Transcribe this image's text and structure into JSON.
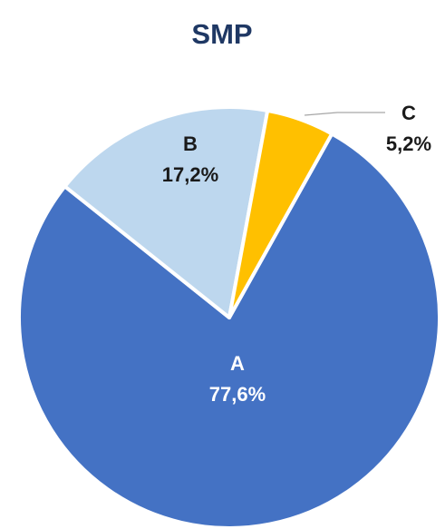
{
  "chart_data": {
    "type": "pie",
    "title": "SMP",
    "categories": [
      "A",
      "B",
      "C"
    ],
    "values": [
      77.6,
      17.2,
      5.2
    ],
    "value_labels": [
      "77,6%",
      "17,2%",
      "5,2%"
    ],
    "colors": [
      "#4472c4",
      "#bdd7ee",
      "#ffc000"
    ]
  }
}
